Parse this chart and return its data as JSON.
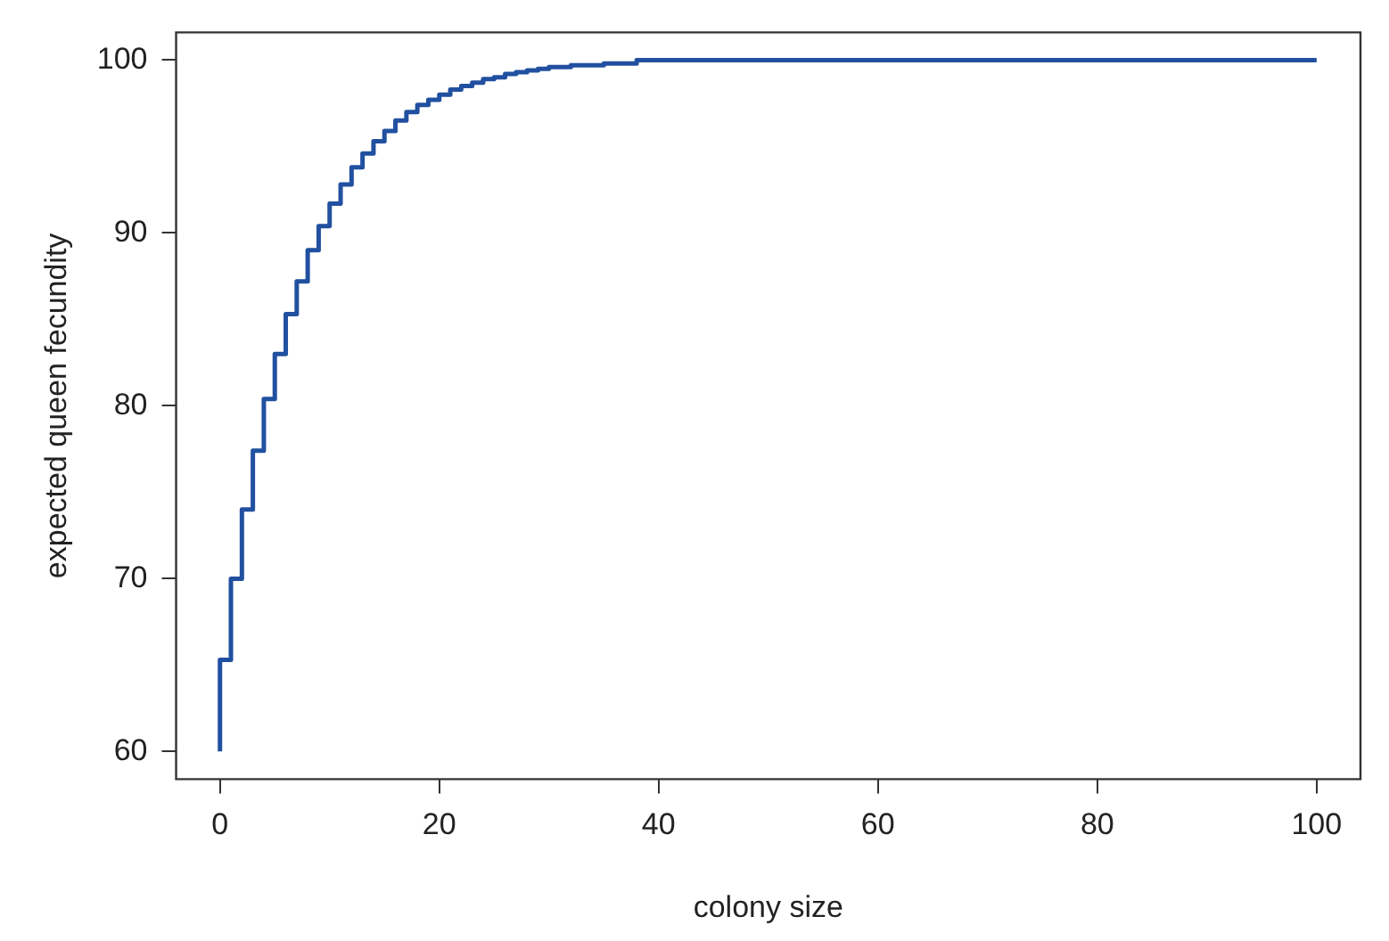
{
  "chart_data": {
    "type": "step",
    "xlabel": "colony size",
    "ylabel": "expected queen fecundity",
    "x": [
      0,
      1,
      2,
      3,
      4,
      5,
      6,
      7,
      8,
      9,
      10,
      11,
      12,
      13,
      14,
      15,
      16,
      17,
      18,
      19,
      20,
      21,
      22,
      23,
      24,
      25,
      26,
      27,
      28,
      29,
      30,
      32,
      35,
      38,
      40,
      100
    ],
    "series": [
      {
        "color": "#2150a0",
        "values": [
          60.0,
          65.3,
          70.0,
          74.0,
          77.4,
          80.4,
          83.0,
          85.3,
          87.2,
          89.0,
          90.4,
          91.7,
          92.8,
          93.8,
          94.6,
          95.3,
          95.9,
          96.5,
          97.0,
          97.4,
          97.7,
          98.0,
          98.3,
          98.5,
          98.7,
          98.9,
          99.0,
          99.2,
          99.3,
          99.4,
          99.5,
          99.6,
          99.7,
          99.8,
          100.0,
          100.0
        ]
      }
    ],
    "xlim": [
      -4,
      104
    ],
    "ylim": [
      58.4,
      101.6
    ],
    "xticks": [
      0,
      20,
      40,
      60,
      80,
      100
    ],
    "yticks": [
      60,
      70,
      80,
      90,
      100
    ],
    "grid": false,
    "legend": false,
    "line_style": "solid",
    "marker": "none"
  }
}
